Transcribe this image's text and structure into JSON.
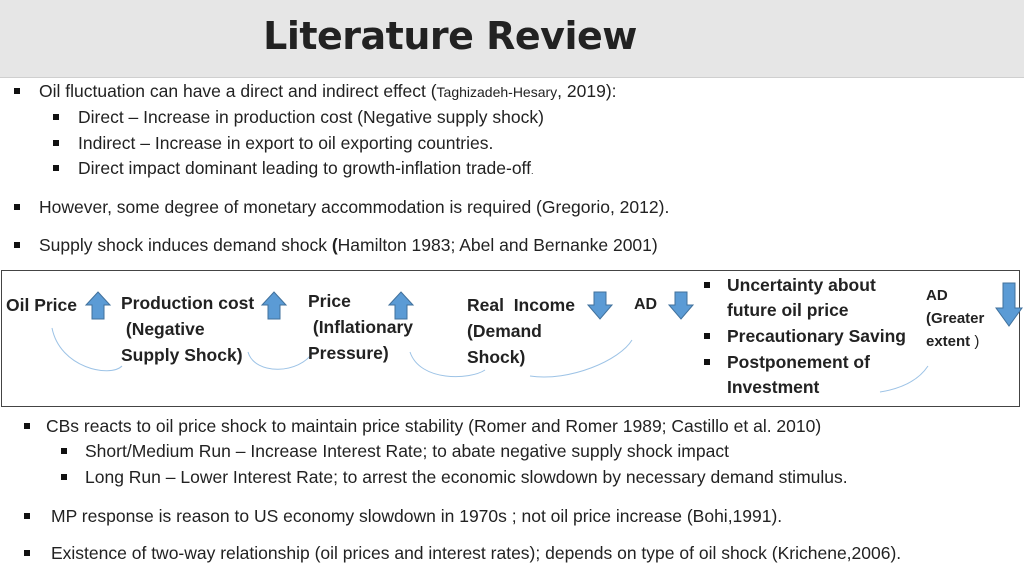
{
  "title": "Literature Review",
  "bullets_top": [
    {
      "pre": "Oil fluctuation can have a direct and indirect effect (",
      "cite": "Taghizadeh-Hesary",
      "post": ", 2019):"
    },
    {
      "text": "Direct    – Increase in production cost (Negative supply shock)"
    },
    {
      "text": "Indirect – Increase in export to oil exporting countries."
    },
    {
      "text": "Direct impact dominant leading to growth-inflation trade-off",
      "suffix": "."
    },
    {
      "text": "However, some degree of monetary accommodation is required (Gregorio, 2012)."
    },
    {
      "pre": "Supply shock induces demand shock ",
      "bold": "(",
      "post": "Hamilton 1983; Abel and Bernanke 2001)"
    }
  ],
  "flow": {
    "oil_price": "Oil Price",
    "production_cost": [
      "Production cost",
      " (Negative",
      "Supply Shock)"
    ],
    "price": [
      "Price",
      " (Inflationary",
      "Pressure)"
    ],
    "real_income": [
      "Real  Income",
      "(Demand",
      "Shock)"
    ],
    "ad": "AD",
    "uncertainty": [
      "Uncertainty about",
      "future oil price"
    ],
    "precautionary": "Precautionary Saving",
    "postponement": [
      "Postponement of",
      "Investment"
    ],
    "ad_greater": [
      "AD",
      "(Greater",
      "extent"
    ],
    "ad_greater_paren": " )"
  },
  "bullets_bottom": [
    {
      "text": "CBs reacts to oil price shock to maintain price stability (Romer and Romer 1989; Castillo et al. 2010)"
    },
    {
      "text": "Short/Medium Run – Increase Interest Rate; to abate negative supply shock impact"
    },
    {
      "text": "Long Run – Lower Interest Rate; to arrest the economic slowdown by necessary demand stimulus."
    },
    {
      "text": "MP response is reason to US economy slowdown in 1970s ; not oil price increase (Bohi,1991)."
    },
    {
      "text": "Existence of two-way relationship (oil prices and interest rates); depends on type of oil shock (Krichene,2006)."
    }
  ],
  "colors": {
    "arrow_fill": "#5b9bd5",
    "arrow_stroke": "#41719c",
    "curve": "#9dc3e6"
  },
  "icons": {
    "up": "arrow-up-icon",
    "down": "arrow-down-icon",
    "bullet": "square-bullet-icon"
  }
}
